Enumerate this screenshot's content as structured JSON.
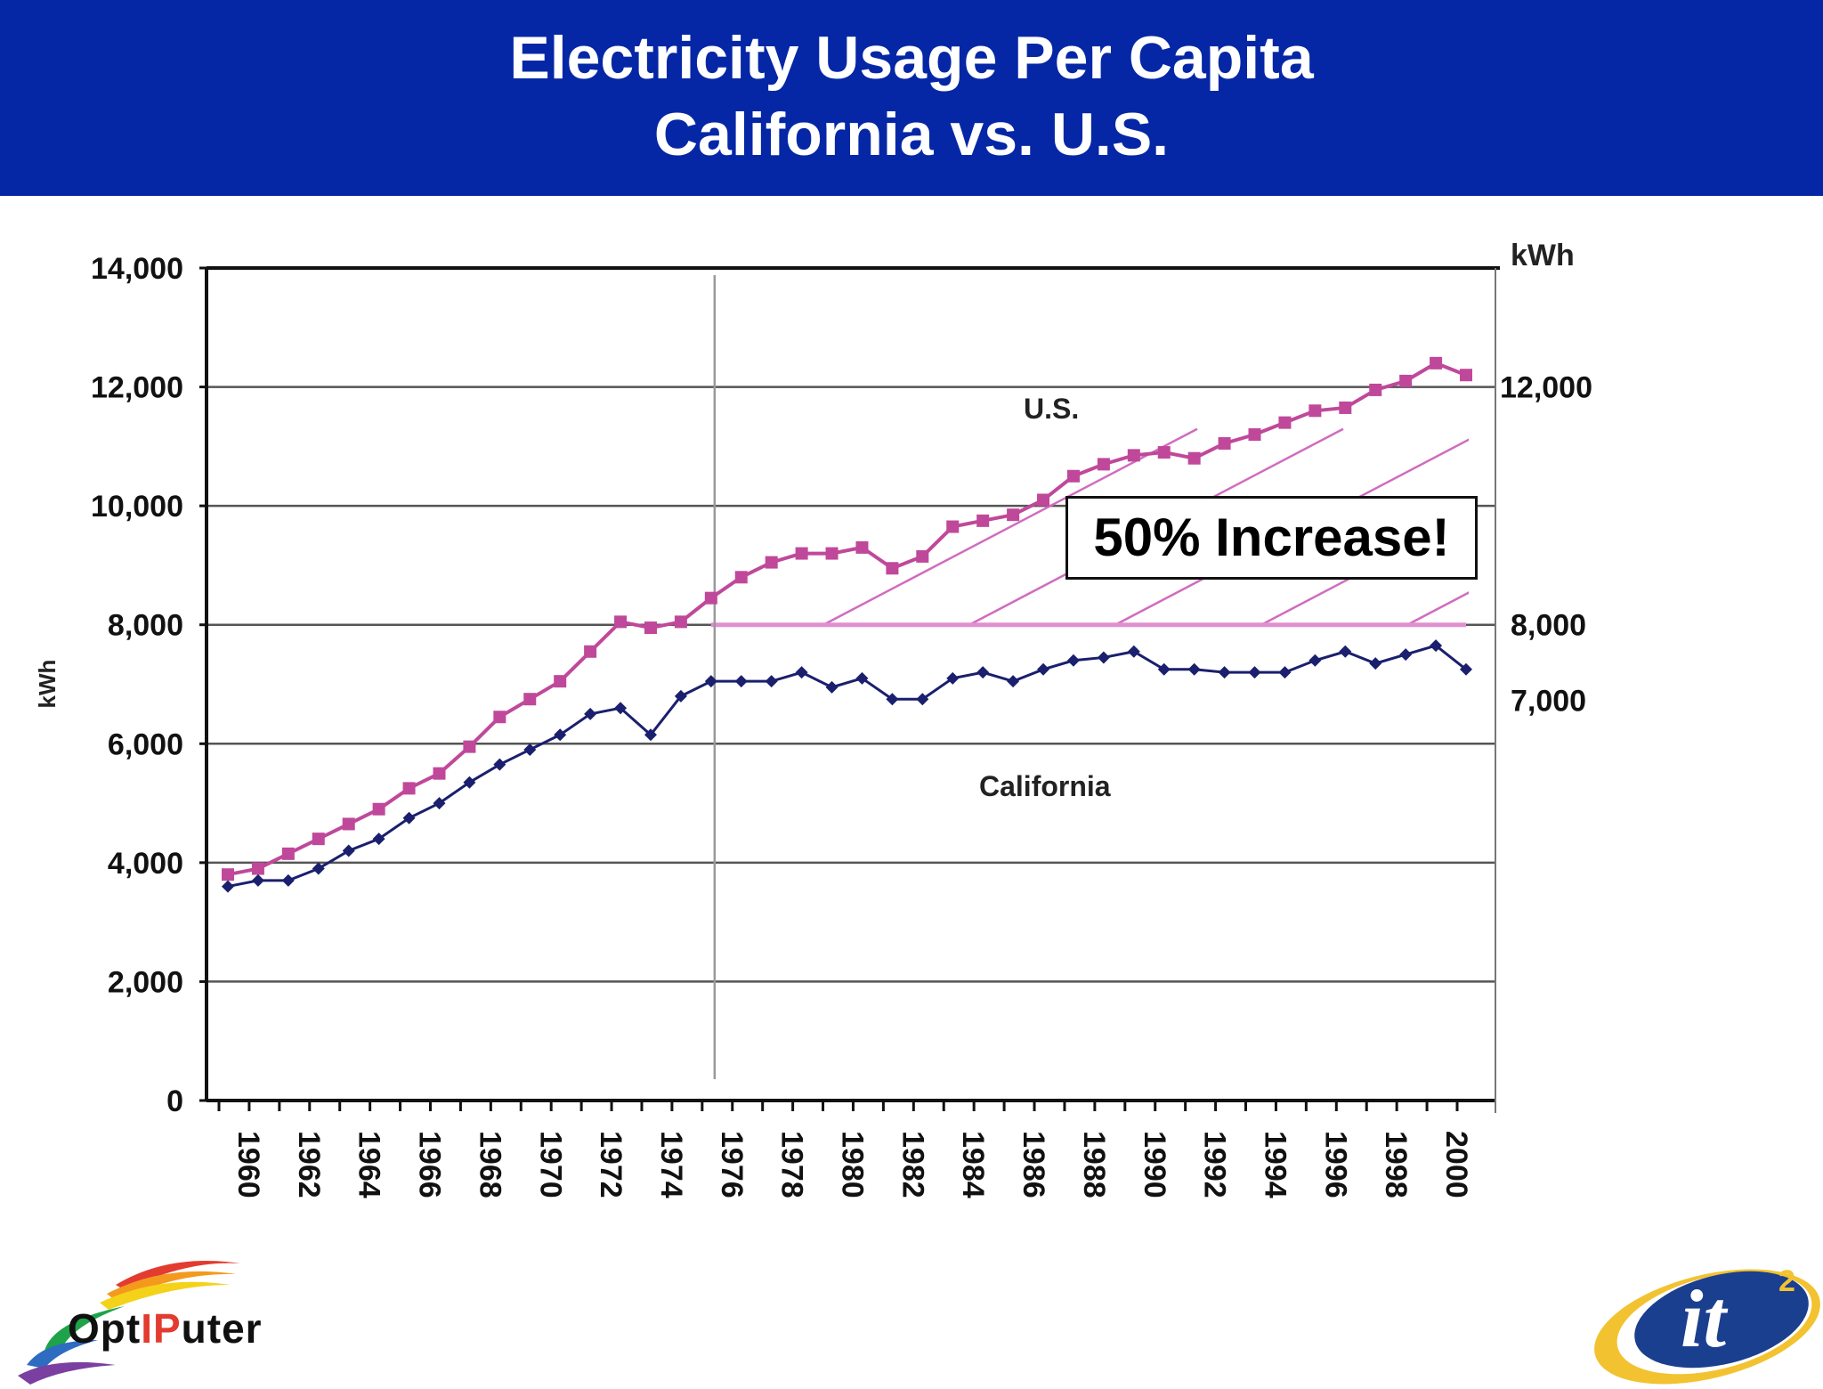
{
  "header": {
    "title_line1": "Electricity Usage Per Capita",
    "title_line2": "California vs. U.S.",
    "background_color": "#0527a6"
  },
  "chart_data": {
    "type": "line",
    "title": "Electricity Usage Per Capita California vs. U.S.",
    "ylabel": "kWh",
    "ylabel_right": "kWh",
    "ylim": [
      0,
      14000
    ],
    "y_ticks": [
      "0",
      "2,000",
      "4,000",
      "6,000",
      "8,000",
      "10,000",
      "12,000",
      "14,000"
    ],
    "y_tick_values": [
      0,
      2000,
      4000,
      6000,
      8000,
      10000,
      12000,
      14000
    ],
    "right_labels": [
      {
        "text": "12,000",
        "value": 12000
      },
      {
        "text": "8,000",
        "value": 8000
      },
      {
        "text": "7,000",
        "value": 7000
      }
    ],
    "x": [
      1960,
      1961,
      1962,
      1963,
      1964,
      1965,
      1966,
      1967,
      1968,
      1969,
      1970,
      1971,
      1972,
      1973,
      1974,
      1975,
      1976,
      1977,
      1978,
      1979,
      1980,
      1981,
      1982,
      1983,
      1984,
      1985,
      1986,
      1987,
      1988,
      1989,
      1990,
      1991,
      1992,
      1993,
      1994,
      1995,
      1996,
      1997,
      1998,
      1999,
      2000,
      2001
    ],
    "x_tick_labels": [
      "1960",
      "1962",
      "1964",
      "1966",
      "1968",
      "1970",
      "1972",
      "1974",
      "1976",
      "1978",
      "1980",
      "1982",
      "1984",
      "1986",
      "1988",
      "1990",
      "1992",
      "1994",
      "1996",
      "1998",
      "2000"
    ],
    "series": [
      {
        "name": "U.S.",
        "color": "#c0489a",
        "marker": "square",
        "values": [
          3800,
          3900,
          4150,
          4400,
          4650,
          4900,
          5250,
          5500,
          5950,
          6450,
          6750,
          7050,
          7550,
          8050,
          7950,
          8050,
          8450,
          8800,
          9050,
          9200,
          9200,
          9300,
          8950,
          9150,
          9650,
          9750,
          9850,
          10100,
          10500,
          10700,
          10850,
          10900,
          10800,
          11050,
          11200,
          11400,
          11600,
          11650,
          11950,
          12100,
          12400,
          12200
        ]
      },
      {
        "name": "California",
        "color": "#1a1f6e",
        "marker": "diamond",
        "values": [
          3600,
          3700,
          3700,
          3900,
          4200,
          4400,
          4750,
          5000,
          5350,
          5650,
          5900,
          6150,
          6500,
          6600,
          6150,
          6800,
          7050,
          7050,
          7050,
          7200,
          6950,
          7100,
          6750,
          6750,
          7100,
          7200,
          7050,
          7250,
          7400,
          7450,
          7550,
          7250,
          7250,
          7200,
          7200,
          7200,
          7400,
          7550,
          7350,
          7500,
          7650,
          7250
        ]
      }
    ],
    "reference_line": {
      "value": 8000,
      "color": "#e28fd0"
    },
    "annotations": {
      "us_label": "U.S.",
      "california_label": "California",
      "callout": "50% Increase!"
    },
    "vertical_marker_year": 1976,
    "grid": true,
    "legend": "none"
  },
  "logos": {
    "left_text_a": "Opt",
    "left_text_b": "IP",
    "left_text_c": "uter",
    "right_text": "it",
    "right_sup": "2"
  }
}
